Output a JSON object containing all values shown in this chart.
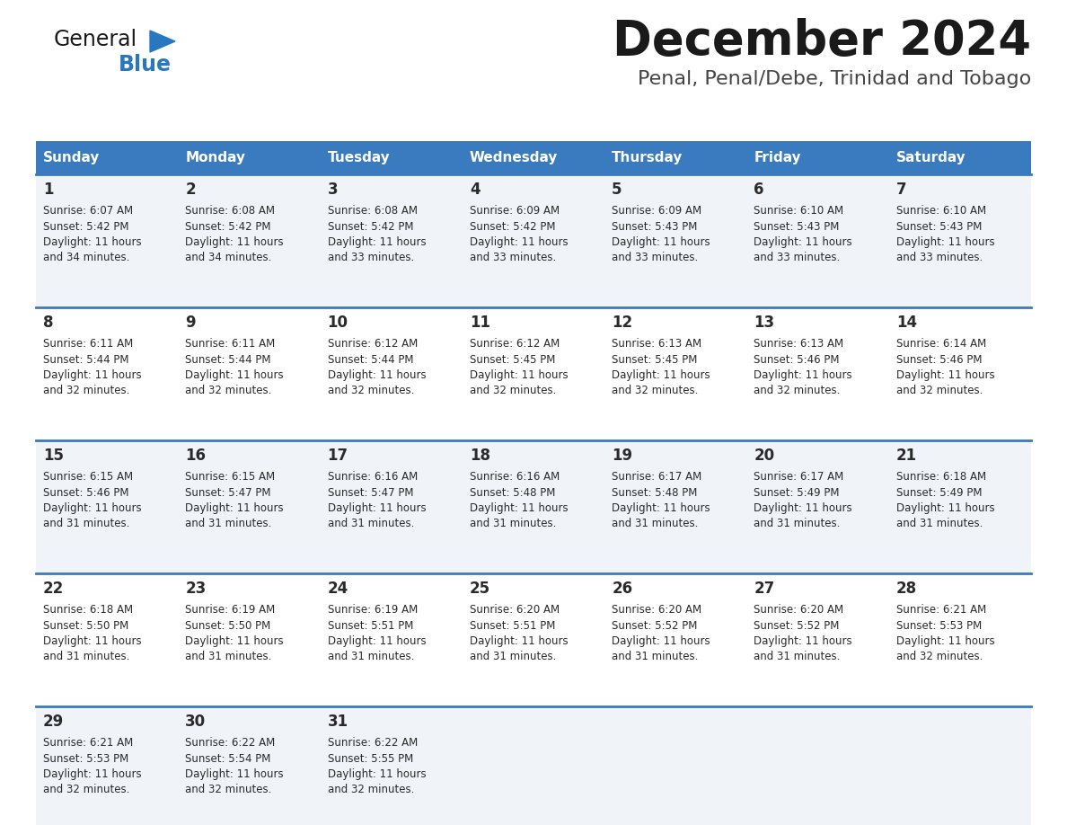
{
  "title": "December 2024",
  "subtitle": "Penal, Penal/Debe, Trinidad and Tobago",
  "days_of_week": [
    "Sunday",
    "Monday",
    "Tuesday",
    "Wednesday",
    "Thursday",
    "Friday",
    "Saturday"
  ],
  "header_bg": "#3a7abf",
  "header_text": "#ffffff",
  "cell_bg_odd": "#f0f4f8",
  "cell_bg_even": "#ffffff",
  "row_separator_color": "#3a7abf",
  "text_color": "#2a2a2a",
  "title_color": "#1a1a1a",
  "subtitle_color": "#444444",
  "logo_general_color": "#1a1a1a",
  "logo_blue_color": "#2878c0",
  "calendar_data": [
    [
      {
        "day": 1,
        "sunrise": "6:07 AM",
        "sunset": "5:42 PM",
        "daylight": "11 hours and 34 minutes."
      },
      {
        "day": 2,
        "sunrise": "6:08 AM",
        "sunset": "5:42 PM",
        "daylight": "11 hours and 34 minutes."
      },
      {
        "day": 3,
        "sunrise": "6:08 AM",
        "sunset": "5:42 PM",
        "daylight": "11 hours and 33 minutes."
      },
      {
        "day": 4,
        "sunrise": "6:09 AM",
        "sunset": "5:42 PM",
        "daylight": "11 hours and 33 minutes."
      },
      {
        "day": 5,
        "sunrise": "6:09 AM",
        "sunset": "5:43 PM",
        "daylight": "11 hours and 33 minutes."
      },
      {
        "day": 6,
        "sunrise": "6:10 AM",
        "sunset": "5:43 PM",
        "daylight": "11 hours and 33 minutes."
      },
      {
        "day": 7,
        "sunrise": "6:10 AM",
        "sunset": "5:43 PM",
        "daylight": "11 hours and 33 minutes."
      }
    ],
    [
      {
        "day": 8,
        "sunrise": "6:11 AM",
        "sunset": "5:44 PM",
        "daylight": "11 hours and 32 minutes."
      },
      {
        "day": 9,
        "sunrise": "6:11 AM",
        "sunset": "5:44 PM",
        "daylight": "11 hours and 32 minutes."
      },
      {
        "day": 10,
        "sunrise": "6:12 AM",
        "sunset": "5:44 PM",
        "daylight": "11 hours and 32 minutes."
      },
      {
        "day": 11,
        "sunrise": "6:12 AM",
        "sunset": "5:45 PM",
        "daylight": "11 hours and 32 minutes."
      },
      {
        "day": 12,
        "sunrise": "6:13 AM",
        "sunset": "5:45 PM",
        "daylight": "11 hours and 32 minutes."
      },
      {
        "day": 13,
        "sunrise": "6:13 AM",
        "sunset": "5:46 PM",
        "daylight": "11 hours and 32 minutes."
      },
      {
        "day": 14,
        "sunrise": "6:14 AM",
        "sunset": "5:46 PM",
        "daylight": "11 hours and 32 minutes."
      }
    ],
    [
      {
        "day": 15,
        "sunrise": "6:15 AM",
        "sunset": "5:46 PM",
        "daylight": "11 hours and 31 minutes."
      },
      {
        "day": 16,
        "sunrise": "6:15 AM",
        "sunset": "5:47 PM",
        "daylight": "11 hours and 31 minutes."
      },
      {
        "day": 17,
        "sunrise": "6:16 AM",
        "sunset": "5:47 PM",
        "daylight": "11 hours and 31 minutes."
      },
      {
        "day": 18,
        "sunrise": "6:16 AM",
        "sunset": "5:48 PM",
        "daylight": "11 hours and 31 minutes."
      },
      {
        "day": 19,
        "sunrise": "6:17 AM",
        "sunset": "5:48 PM",
        "daylight": "11 hours and 31 minutes."
      },
      {
        "day": 20,
        "sunrise": "6:17 AM",
        "sunset": "5:49 PM",
        "daylight": "11 hours and 31 minutes."
      },
      {
        "day": 21,
        "sunrise": "6:18 AM",
        "sunset": "5:49 PM",
        "daylight": "11 hours and 31 minutes."
      }
    ],
    [
      {
        "day": 22,
        "sunrise": "6:18 AM",
        "sunset": "5:50 PM",
        "daylight": "11 hours and 31 minutes."
      },
      {
        "day": 23,
        "sunrise": "6:19 AM",
        "sunset": "5:50 PM",
        "daylight": "11 hours and 31 minutes."
      },
      {
        "day": 24,
        "sunrise": "6:19 AM",
        "sunset": "5:51 PM",
        "daylight": "11 hours and 31 minutes."
      },
      {
        "day": 25,
        "sunrise": "6:20 AM",
        "sunset": "5:51 PM",
        "daylight": "11 hours and 31 minutes."
      },
      {
        "day": 26,
        "sunrise": "6:20 AM",
        "sunset": "5:52 PM",
        "daylight": "11 hours and 31 minutes."
      },
      {
        "day": 27,
        "sunrise": "6:20 AM",
        "sunset": "5:52 PM",
        "daylight": "11 hours and 31 minutes."
      },
      {
        "day": 28,
        "sunrise": "6:21 AM",
        "sunset": "5:53 PM",
        "daylight": "11 hours and 32 minutes."
      }
    ],
    [
      {
        "day": 29,
        "sunrise": "6:21 AM",
        "sunset": "5:53 PM",
        "daylight": "11 hours and 32 minutes."
      },
      {
        "day": 30,
        "sunrise": "6:22 AM",
        "sunset": "5:54 PM",
        "daylight": "11 hours and 32 minutes."
      },
      {
        "day": 31,
        "sunrise": "6:22 AM",
        "sunset": "5:55 PM",
        "daylight": "11 hours and 32 minutes."
      },
      null,
      null,
      null,
      null
    ]
  ],
  "fig_width": 11.88,
  "fig_height": 9.18,
  "dpi": 100
}
